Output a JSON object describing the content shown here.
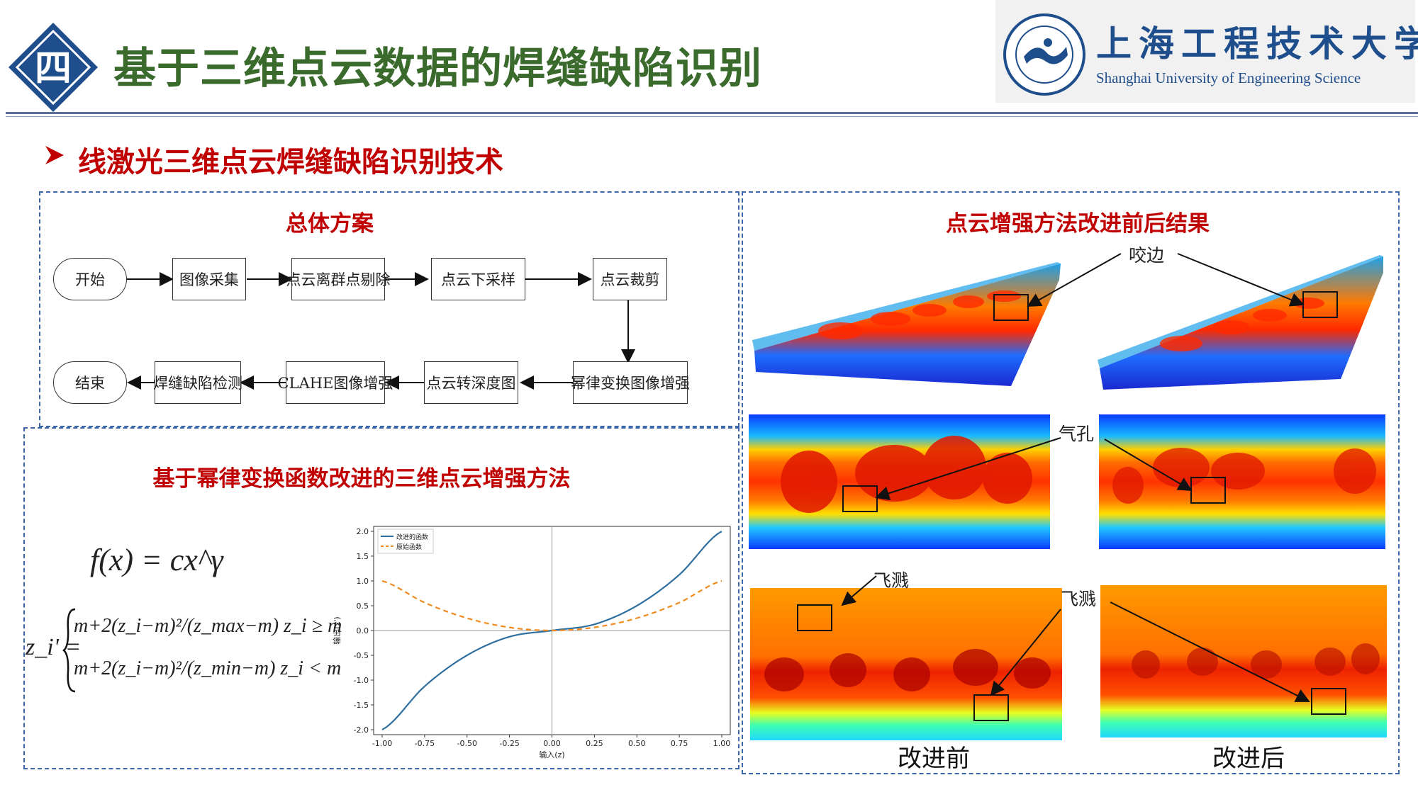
{
  "header": {
    "badge": "四",
    "title": "基于三维点云数据的焊缝缺陷识别",
    "logo_cn": "上海工程技术大学",
    "logo_en": "Shanghai University of Engineering Science"
  },
  "section": {
    "title": "线激光三维点云焊缝缺陷识别技术"
  },
  "flow": {
    "title": "总体方案",
    "row1": [
      "开始",
      "图像采集",
      "点云离群点剔除",
      "点云下采样",
      "点云裁剪"
    ],
    "row2": [
      "结束",
      "焊缝缺陷检测",
      "CLAHE图像增强",
      "点云转深度图",
      "幂律变换图像增强"
    ]
  },
  "method": {
    "title": "基于幂律变换函数改进的三维点云增强方法",
    "formula1": "f(x) = cx^γ",
    "formula2_lhs": "z_i' =",
    "formula2_case1": "m+2(z_i−m)²/(z_max−m)   z_i ≥ m",
    "formula2_case2": "m+2(z_i−m)²/(z_min−m)   z_i < m"
  },
  "chart_data": {
    "type": "line",
    "x": [
      -1.0,
      -0.75,
      -0.5,
      -0.25,
      0.0,
      0.25,
      0.5,
      0.75,
      1.0
    ],
    "series": [
      {
        "name": "改进的函数",
        "color": "#2f6f9f",
        "style": "solid",
        "values": [
          -2.0,
          -1.125,
          -0.5,
          -0.125,
          0.0,
          0.125,
          0.5,
          1.125,
          2.0
        ]
      },
      {
        "name": "原始函数",
        "color": "#f08a1e",
        "style": "dashed",
        "values": [
          1.0,
          0.5625,
          0.25,
          0.0625,
          0.0,
          0.0625,
          0.25,
          0.5625,
          1.0
        ]
      }
    ],
    "xlabel": "输入(z)",
    "ylabel": "输出(z')",
    "xlim": [
      -1.05,
      1.05
    ],
    "ylim": [
      -2.1,
      2.1
    ],
    "xticks": [
      "-1.00",
      "-0.75",
      "-0.50",
      "-0.25",
      "0.00",
      "0.25",
      "0.50",
      "0.75",
      "1.00"
    ],
    "yticks": [
      "2.0",
      "1.5",
      "1.0",
      "0.5",
      "0.0",
      "-0.5",
      "-1.0",
      "-1.5",
      "-2.0"
    ],
    "legend": "top-left",
    "grid": false
  },
  "results": {
    "title": "点云增强方法改进前后结果",
    "labels": {
      "undercut": "咬边",
      "porosity": "气孔",
      "spatter_left": "飞溅",
      "spatter_right": "飞溅"
    },
    "before": "改进前",
    "after": "改进后"
  },
  "colors": {
    "accent_red": "#c00000",
    "title_green": "#3a6a2c",
    "navy": "#1f4e8c",
    "panel_border": "#3b66a8"
  }
}
